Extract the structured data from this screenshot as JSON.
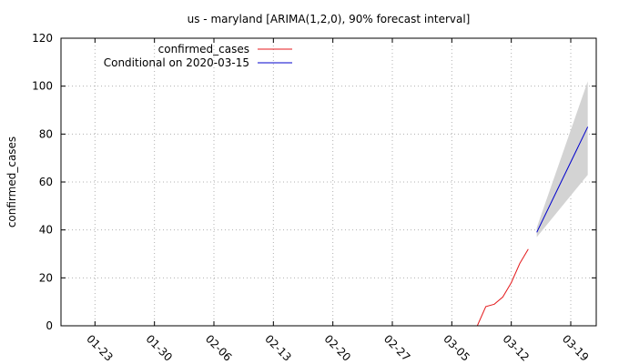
{
  "chart_data": {
    "type": "line",
    "title": "us - maryland [ARIMA(1,2,0), 90% forecast interval]",
    "xlabel": "",
    "ylabel": "confirmed_cases",
    "ylim": [
      0,
      120
    ],
    "yticks": [
      "0",
      "20",
      "40",
      "60",
      "80",
      "100",
      "120"
    ],
    "xlim": [
      "2020-01-19",
      "2020-03-22"
    ],
    "xticks": [
      {
        "date": "2020-01-23",
        "label": "01-23"
      },
      {
        "date": "2020-01-30",
        "label": "01-30"
      },
      {
        "date": "2020-02-06",
        "label": "02-06"
      },
      {
        "date": "2020-02-13",
        "label": "02-13"
      },
      {
        "date": "2020-02-20",
        "label": "02-20"
      },
      {
        "date": "2020-02-27",
        "label": "02-27"
      },
      {
        "date": "2020-03-05",
        "label": "03-05"
      },
      {
        "date": "2020-03-12",
        "label": "03-12"
      },
      {
        "date": "2020-03-19",
        "label": "03-19"
      }
    ],
    "grid": true,
    "legend_position": "top-left",
    "series": [
      {
        "name": "confirmed_cases",
        "color": "#e41a1c",
        "points": [
          {
            "x": "2020-03-08",
            "y": 0
          },
          {
            "x": "2020-03-09",
            "y": 8
          },
          {
            "x": "2020-03-10",
            "y": 9
          },
          {
            "x": "2020-03-11",
            "y": 12
          },
          {
            "x": "2020-03-12",
            "y": 18
          },
          {
            "x": "2020-03-13",
            "y": 26
          },
          {
            "x": "2020-03-14",
            "y": 32
          }
        ]
      },
      {
        "name": "Conditional on 2020-03-15",
        "color": "#0000cc",
        "points": [
          {
            "x": "2020-03-15",
            "y": 39
          },
          {
            "x": "2020-03-21",
            "y": 83
          }
        ]
      }
    ],
    "forecast_interval": {
      "color": "#d3d3d3",
      "points": [
        {
          "x": "2020-03-15",
          "low": 37,
          "high": 41
        },
        {
          "x": "2020-03-21",
          "low": 63,
          "high": 102
        }
      ]
    }
  }
}
